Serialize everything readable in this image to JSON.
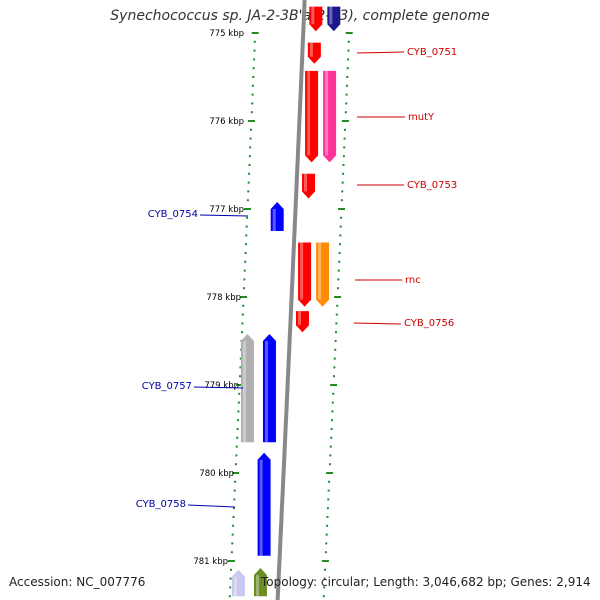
{
  "title": "Synechococcus sp. JA-2-3B'a(2-13), complete genome",
  "accession_label": "Accession: NC_007776",
  "summary_label": "Topology: circular; Length: 3,046,682 bp; Genes: 2,914",
  "colors": {
    "tick": "#228B22",
    "backbone": "#888888",
    "plus_label": "#cc0000",
    "minus_label": "#0000aa"
  },
  "scale_labels": [
    "775 kbp",
    "776 kbp",
    "777 kbp",
    "778 kbp",
    "779 kbp",
    "780 kbp",
    "781 kbp"
  ],
  "gene_labels": [
    {
      "name": "CYB_0751",
      "strand": "plus"
    },
    {
      "name": "mutY",
      "strand": "plus"
    },
    {
      "name": "CYB_0753",
      "strand": "plus"
    },
    {
      "name": "CYB_0754",
      "strand": "minus"
    },
    {
      "name": "rnc",
      "strand": "plus"
    },
    {
      "name": "CYB_0756",
      "strand": "plus"
    },
    {
      "name": "CYB_0757",
      "strand": "minus"
    },
    {
      "name": "CYB_0758",
      "strand": "minus"
    }
  ],
  "genes": [
    {
      "name": "CYB_0751",
      "strand": "plus",
      "color": "#ff0000",
      "start_kbp": 775.11,
      "end_kbp": 775.35
    },
    {
      "name": "mutY",
      "strand": "plus",
      "color": "#ff0000",
      "start_kbp": 775.43,
      "end_kbp": 776.47
    },
    {
      "name": "mutY-companion",
      "strand": "plus",
      "color": "#ff3399",
      "start_kbp": 775.43,
      "end_kbp": 776.47
    },
    {
      "name": "CYB_0753",
      "strand": "plus",
      "color": "#ff0000",
      "start_kbp": 776.6,
      "end_kbp": 776.88
    },
    {
      "name": "CYB_0754",
      "strand": "minus",
      "color": "#0000ff",
      "start_kbp": 776.92,
      "end_kbp": 777.25
    },
    {
      "name": "rnc",
      "strand": "plus",
      "color": "#ff0000",
      "start_kbp": 777.38,
      "end_kbp": 778.11
    },
    {
      "name": "rnc-companion",
      "strand": "plus",
      "color": "#ff8c00",
      "start_kbp": 777.38,
      "end_kbp": 778.11
    },
    {
      "name": "CYB_0756",
      "strand": "plus",
      "color": "#ff0000",
      "start_kbp": 778.16,
      "end_kbp": 778.4
    },
    {
      "name": "CYB_0757",
      "strand": "minus",
      "color": "#0000ff",
      "start_kbp": 778.42,
      "end_kbp": 779.65
    },
    {
      "name": "CYB_0757-companion",
      "strand": "minus",
      "color": "#b0b0b0",
      "start_kbp": 778.42,
      "end_kbp": 779.65
    },
    {
      "name": "CYB_0758",
      "strand": "minus",
      "color": "#0000ff",
      "start_kbp": 779.77,
      "end_kbp": 780.94
    },
    {
      "name": "CYB_0759-partial",
      "strand": "minus",
      "color": "#6b8e23",
      "start_kbp": 781.08,
      "end_kbp": 781.4
    },
    {
      "name": "CYB_0759-companion-partial",
      "strand": "minus",
      "color": "#c8c8f0",
      "start_kbp": 781.1,
      "end_kbp": 781.4
    },
    {
      "name": "CYB_0750-partial",
      "strand": "plus",
      "color": "#ff0000",
      "start_kbp": 774.7,
      "end_kbp": 774.98
    },
    {
      "name": "CYB_0750-companion-partial",
      "strand": "plus",
      "color": "#1a1a8c",
      "start_kbp": 774.7,
      "end_kbp": 774.98
    }
  ]
}
